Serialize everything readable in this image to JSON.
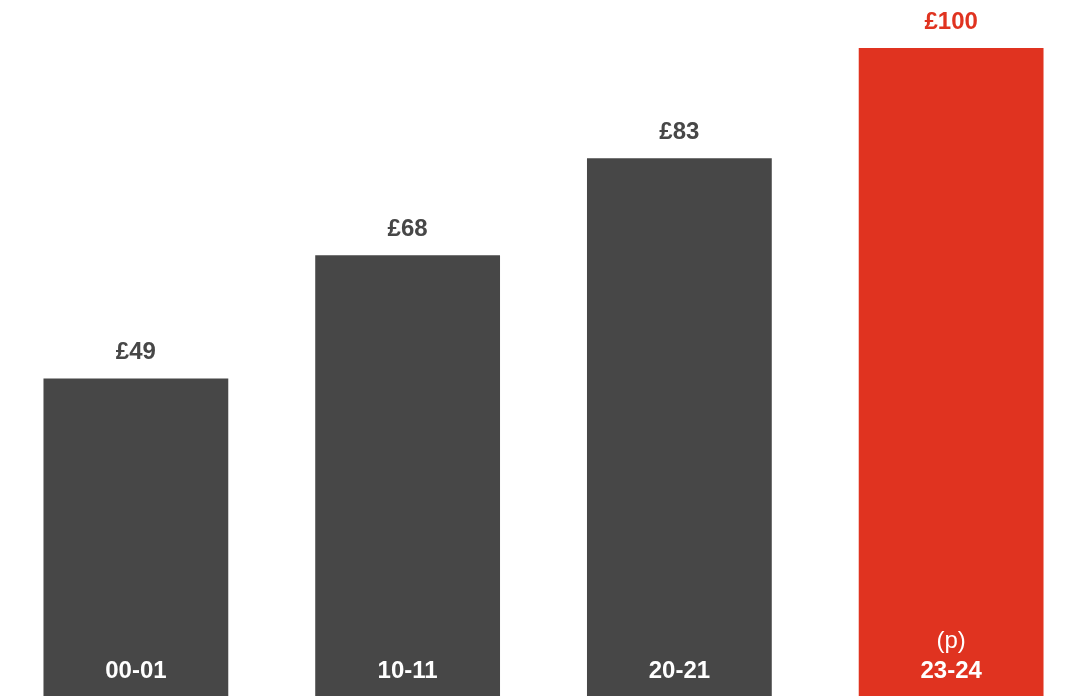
{
  "chart_data": {
    "type": "bar",
    "categories": [
      "00-01",
      "10-11",
      "20-21",
      "(p)\n23-24"
    ],
    "values": [
      49,
      68,
      83,
      100
    ],
    "colors": [
      "#474747",
      "#474747",
      "#474747",
      "#e03320"
    ],
    "ylim": [
      0,
      100
    ],
    "value_labels": [
      "£49",
      "£68",
      "£83",
      "£100"
    ],
    "tick_labels": false,
    "legend": false
  }
}
